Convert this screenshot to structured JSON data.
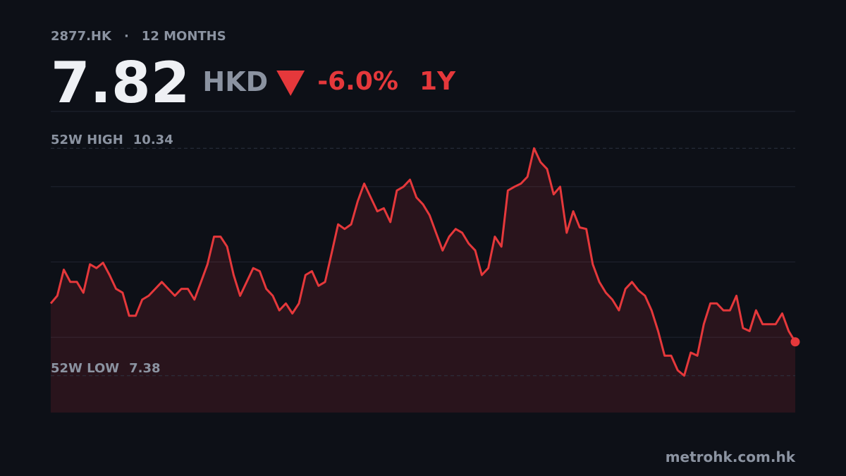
{
  "header": {
    "ticker": "2877.HK",
    "separator": "·",
    "period": "12 MONTHS",
    "price": "7.82",
    "currency": "HKD",
    "change": "-6.0%",
    "range": "1Y"
  },
  "chart_data": {
    "type": "line",
    "color": "#e5383b",
    "values": [
      8.32,
      8.42,
      8.76,
      8.6,
      8.6,
      8.46,
      8.83,
      8.78,
      8.85,
      8.69,
      8.51,
      8.46,
      8.16,
      8.16,
      8.37,
      8.42,
      8.51,
      8.6,
      8.51,
      8.42,
      8.51,
      8.51,
      8.37,
      8.6,
      8.83,
      9.19,
      9.19,
      9.06,
      8.69,
      8.42,
      8.6,
      8.78,
      8.74,
      8.51,
      8.42,
      8.23,
      8.32,
      8.19,
      8.32,
      8.69,
      8.74,
      8.55,
      8.6,
      8.97,
      9.35,
      9.29,
      9.35,
      9.65,
      9.88,
      9.7,
      9.52,
      9.56,
      9.38,
      9.79,
      9.84,
      9.93,
      9.7,
      9.61,
      9.47,
      9.24,
      9.01,
      9.19,
      9.29,
      9.24,
      9.1,
      9.01,
      8.69,
      8.78,
      9.19,
      9.06,
      9.79,
      9.84,
      9.88,
      9.97,
      10.34,
      10.16,
      10.07,
      9.74,
      9.84,
      9.24,
      9.52,
      9.31,
      9.29,
      8.83,
      8.6,
      8.46,
      8.37,
      8.23,
      8.51,
      8.6,
      8.49,
      8.42,
      8.23,
      7.96,
      7.64,
      7.64,
      7.45,
      7.38,
      7.68,
      7.64,
      8.05,
      8.32,
      8.32,
      8.23,
      8.23,
      8.42,
      8.0,
      7.96,
      8.23,
      8.05,
      8.05,
      8.05,
      8.19,
      7.96,
      7.82
    ],
    "ylim": [
      6.9,
      10.82
    ],
    "yticks": [
      7.88,
      8.86,
      9.84
    ],
    "grid": true,
    "high": {
      "label": "52W HIGH",
      "value": 10.34
    },
    "low": {
      "label": "52W LOW",
      "value": 7.38
    }
  },
  "footer": {
    "source": "metrohk.com.hk"
  }
}
